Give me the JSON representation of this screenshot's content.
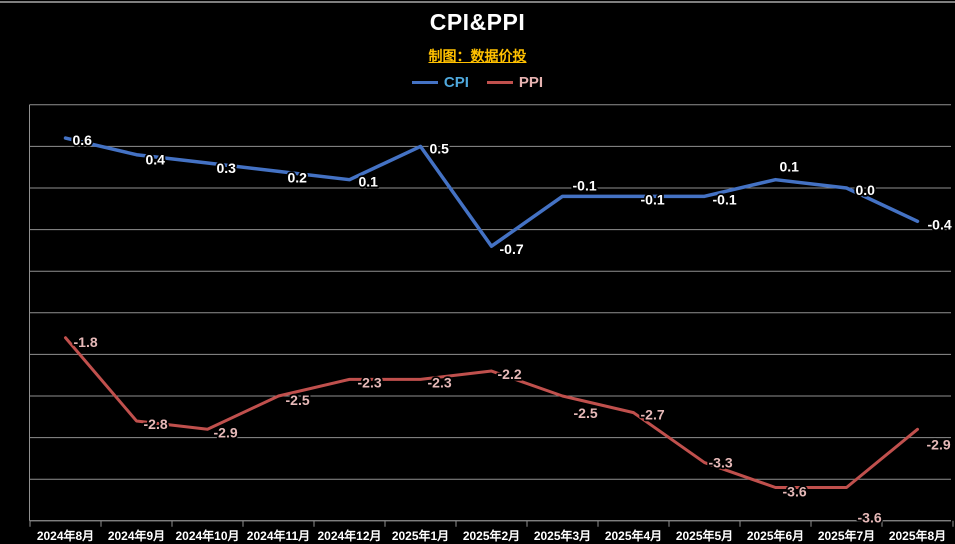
{
  "window": {
    "top_border_color": "#7f7f7f",
    "background": "#000000"
  },
  "header": {
    "title": "CPI&PPI",
    "subtitle": "制图：数据价投",
    "title_color": "#ffffff",
    "subtitle_color": "#ffc000"
  },
  "legend": [
    {
      "label": "CPI",
      "line_color": "#4472c4",
      "text_color": "#4fa8dc"
    },
    {
      "label": "PPI",
      "line_color": "#c0504d",
      "text_color": "#e6b3b1"
    }
  ],
  "chart_data": {
    "type": "line",
    "title": "CPI&PPI",
    "categories": [
      "2024年8月",
      "2024年9月",
      "2024年10月",
      "2024年11月",
      "2024年12月",
      "2025年1月",
      "2025年2月",
      "2025年3月",
      "2025年4月",
      "2025年5月",
      "2025年6月",
      "2025年7月",
      "2025年8月"
    ],
    "series": [
      {
        "name": "CPI",
        "color": "#4472c4",
        "label_color": "#ffffff",
        "values": [
          0.6,
          0.4,
          0.3,
          0.2,
          0.1,
          0.5,
          -0.7,
          -0.1,
          -0.1,
          -0.1,
          0.1,
          0.0,
          -0.4
        ],
        "labels": [
          "0.6",
          "0.4",
          "0.3",
          "0.2",
          "0.1",
          "0.5",
          "-0.7",
          "-0.1",
          "-0.1",
          "-0.1",
          "0.1",
          "0.0",
          "-0.4"
        ]
      },
      {
        "name": "PPI",
        "color": "#c0504d",
        "label_color": "#e6b9b8",
        "values": [
          -1.8,
          -2.8,
          -2.9,
          -2.5,
          -2.3,
          -2.3,
          -2.2,
          -2.5,
          -2.7,
          -3.3,
          -3.6,
          -3.6,
          -2.9
        ],
        "labels": [
          "-1.8",
          "-2.8",
          "-2.9",
          "-2.5",
          "-2.3",
          "-2.3",
          "-2.2",
          "-2.5",
          "-2.7",
          "-3.3",
          "-3.6",
          "-3.6",
          "-2.9"
        ]
      }
    ],
    "ylim": [
      -4.0,
      1.0
    ],
    "grid_step": 0.5,
    "grid": true,
    "y_tick_labels_shown": false,
    "legend_position": "top-center",
    "grid_color": "#909090",
    "axis_color": "#909090",
    "x_label_color": "#ffffff",
    "label_offsets": {
      "CPI": [
        [
          7,
          7
        ],
        [
          9,
          10
        ],
        [
          9,
          10
        ],
        [
          9,
          11
        ],
        [
          9,
          7
        ],
        [
          9,
          7
        ],
        [
          8,
          8
        ],
        [
          10,
          -6
        ],
        [
          7,
          8
        ],
        [
          8,
          8
        ],
        [
          4,
          -8
        ],
        [
          9,
          7
        ],
        [
          10,
          8
        ]
      ],
      "PPI": [
        [
          8,
          9
        ],
        [
          7,
          8
        ],
        [
          6,
          8
        ],
        [
          7,
          9
        ],
        [
          8,
          8
        ],
        [
          7,
          8
        ],
        [
          6,
          8
        ],
        [
          11,
          22
        ],
        [
          7,
          7
        ],
        [
          4,
          5
        ],
        [
          7,
          9
        ],
        [
          11,
          35
        ],
        [
          9,
          20
        ]
      ]
    }
  }
}
